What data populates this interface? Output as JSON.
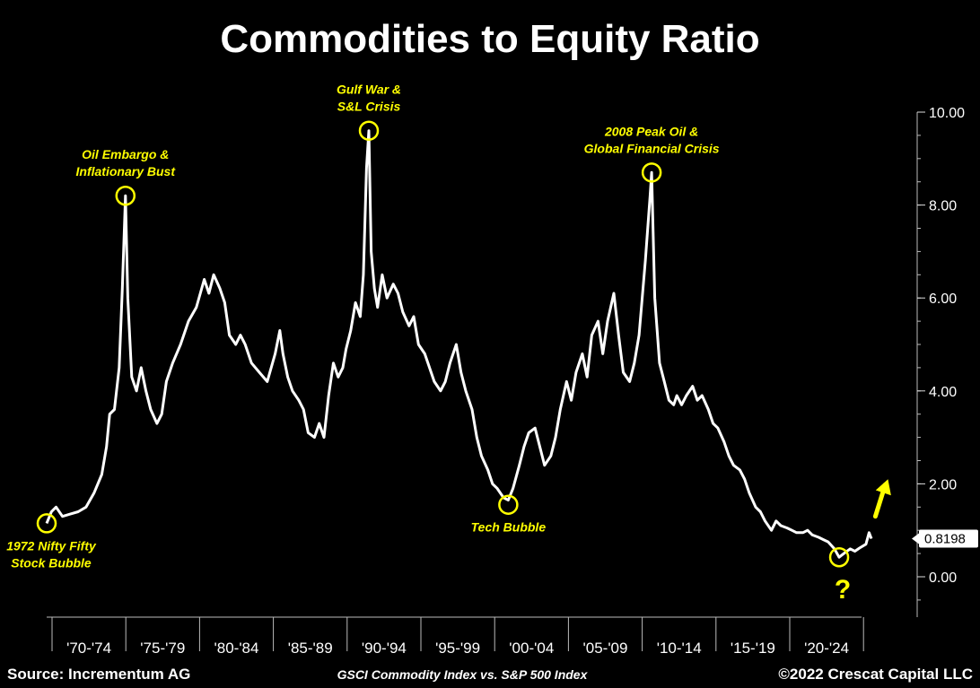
{
  "chart_data": {
    "type": "line",
    "title": "Commodities to Equity Ratio",
    "subtitle": "GSCI Commodity Index vs. S&P 500 Index",
    "xlabel": "",
    "ylabel": "",
    "xlim": [
      1970,
      2024
    ],
    "ylim": [
      -1,
      10.5
    ],
    "y_ticks": [
      0,
      2,
      4,
      6,
      8,
      10
    ],
    "y_tick_labels": [
      "0.00",
      "2.00",
      "4.00",
      "6.00",
      "8.00",
      "10.00"
    ],
    "x_tick_labels": [
      "'70-'74",
      "'75-'79",
      "'80-'84",
      "'85-'89",
      "'90-'94",
      "'95-'99",
      "'00-'04",
      "'05-'09",
      "'10-'14",
      "'15-'19",
      "'20-'24"
    ],
    "last_value_label": "0.8198",
    "series": [
      {
        "name": "GSCI / S&P 500",
        "points": [
          [
            1970.0,
            1.15
          ],
          [
            1970.3,
            1.4
          ],
          [
            1970.6,
            1.5
          ],
          [
            1971.0,
            1.3
          ],
          [
            1971.5,
            1.35
          ],
          [
            1972.0,
            1.4
          ],
          [
            1972.5,
            1.5
          ],
          [
            1973.0,
            1.8
          ],
          [
            1973.5,
            2.2
          ],
          [
            1973.8,
            2.8
          ],
          [
            1974.0,
            3.5
          ],
          [
            1974.3,
            3.6
          ],
          [
            1974.6,
            4.5
          ],
          [
            1974.8,
            6.2
          ],
          [
            1975.0,
            8.2
          ],
          [
            1975.15,
            6.0
          ],
          [
            1975.4,
            4.3
          ],
          [
            1975.7,
            4.0
          ],
          [
            1976.0,
            4.5
          ],
          [
            1976.3,
            4.0
          ],
          [
            1976.6,
            3.6
          ],
          [
            1977.0,
            3.3
          ],
          [
            1977.3,
            3.5
          ],
          [
            1977.6,
            4.2
          ],
          [
            1978.0,
            4.6
          ],
          [
            1978.5,
            5.0
          ],
          [
            1979.0,
            5.5
          ],
          [
            1979.5,
            5.8
          ],
          [
            1980.0,
            6.4
          ],
          [
            1980.3,
            6.1
          ],
          [
            1980.6,
            6.5
          ],
          [
            1981.0,
            6.2
          ],
          [
            1981.3,
            5.9
          ],
          [
            1981.6,
            5.2
          ],
          [
            1982.0,
            5.0
          ],
          [
            1982.3,
            5.2
          ],
          [
            1982.6,
            5.0
          ],
          [
            1983.0,
            4.6
          ],
          [
            1983.5,
            4.4
          ],
          [
            1984.0,
            4.2
          ],
          [
            1984.5,
            4.8
          ],
          [
            1984.8,
            5.3
          ],
          [
            1985.0,
            4.8
          ],
          [
            1985.3,
            4.3
          ],
          [
            1985.6,
            4.0
          ],
          [
            1986.0,
            3.8
          ],
          [
            1986.3,
            3.6
          ],
          [
            1986.6,
            3.1
          ],
          [
            1987.0,
            3.0
          ],
          [
            1987.3,
            3.3
          ],
          [
            1987.6,
            3.0
          ],
          [
            1987.9,
            3.9
          ],
          [
            1988.2,
            4.6
          ],
          [
            1988.5,
            4.3
          ],
          [
            1988.8,
            4.5
          ],
          [
            1989.0,
            4.9
          ],
          [
            1989.3,
            5.3
          ],
          [
            1989.6,
            5.9
          ],
          [
            1989.9,
            5.6
          ],
          [
            1990.1,
            6.5
          ],
          [
            1990.3,
            8.8
          ],
          [
            1990.45,
            9.6
          ],
          [
            1990.6,
            7.0
          ],
          [
            1990.8,
            6.2
          ],
          [
            1991.0,
            5.8
          ],
          [
            1991.3,
            6.5
          ],
          [
            1991.6,
            6.0
          ],
          [
            1992.0,
            6.3
          ],
          [
            1992.3,
            6.1
          ],
          [
            1992.6,
            5.7
          ],
          [
            1993.0,
            5.4
          ],
          [
            1993.3,
            5.6
          ],
          [
            1993.6,
            5.0
          ],
          [
            1994.0,
            4.8
          ],
          [
            1994.3,
            4.5
          ],
          [
            1994.6,
            4.2
          ],
          [
            1995.0,
            4.0
          ],
          [
            1995.3,
            4.2
          ],
          [
            1995.6,
            4.6
          ],
          [
            1996.0,
            5.0
          ],
          [
            1996.3,
            4.4
          ],
          [
            1996.6,
            4.0
          ],
          [
            1997.0,
            3.6
          ],
          [
            1997.3,
            3.0
          ],
          [
            1997.6,
            2.6
          ],
          [
            1998.0,
            2.3
          ],
          [
            1998.3,
            2.0
          ],
          [
            1998.6,
            1.9
          ],
          [
            1999.0,
            1.7
          ],
          [
            1999.3,
            1.65
          ],
          [
            1999.6,
            1.9
          ],
          [
            2000.0,
            2.4
          ],
          [
            2000.3,
            2.8
          ],
          [
            2000.6,
            3.1
          ],
          [
            2001.0,
            3.2
          ],
          [
            2001.3,
            2.8
          ],
          [
            2001.6,
            2.4
          ],
          [
            2002.0,
            2.6
          ],
          [
            2002.3,
            3.0
          ],
          [
            2002.6,
            3.6
          ],
          [
            2003.0,
            4.2
          ],
          [
            2003.3,
            3.8
          ],
          [
            2003.6,
            4.4
          ],
          [
            2004.0,
            4.8
          ],
          [
            2004.3,
            4.3
          ],
          [
            2004.6,
            5.2
          ],
          [
            2005.0,
            5.5
          ],
          [
            2005.3,
            4.8
          ],
          [
            2005.6,
            5.5
          ],
          [
            2006.0,
            6.1
          ],
          [
            2006.3,
            5.2
          ],
          [
            2006.6,
            4.4
          ],
          [
            2007.0,
            4.2
          ],
          [
            2007.3,
            4.6
          ],
          [
            2007.6,
            5.2
          ],
          [
            2008.0,
            6.8
          ],
          [
            2008.3,
            8.2
          ],
          [
            2008.4,
            8.7
          ],
          [
            2008.6,
            6.0
          ],
          [
            2008.9,
            4.6
          ],
          [
            2009.2,
            4.2
          ],
          [
            2009.5,
            3.8
          ],
          [
            2009.8,
            3.7
          ],
          [
            2010.0,
            3.9
          ],
          [
            2010.3,
            3.7
          ],
          [
            2010.6,
            3.9
          ],
          [
            2011.0,
            4.1
          ],
          [
            2011.3,
            3.8
          ],
          [
            2011.6,
            3.9
          ],
          [
            2012.0,
            3.6
          ],
          [
            2012.3,
            3.3
          ],
          [
            2012.6,
            3.2
          ],
          [
            2013.0,
            2.9
          ],
          [
            2013.3,
            2.6
          ],
          [
            2013.6,
            2.4
          ],
          [
            2014.0,
            2.3
          ],
          [
            2014.3,
            2.1
          ],
          [
            2014.6,
            1.8
          ],
          [
            2015.0,
            1.5
          ],
          [
            2015.3,
            1.4
          ],
          [
            2015.6,
            1.2
          ],
          [
            2016.0,
            1.0
          ],
          [
            2016.3,
            1.2
          ],
          [
            2016.6,
            1.1
          ],
          [
            2017.0,
            1.05
          ],
          [
            2017.3,
            1.0
          ],
          [
            2017.6,
            0.95
          ],
          [
            2018.0,
            0.95
          ],
          [
            2018.3,
            1.0
          ],
          [
            2018.6,
            0.9
          ],
          [
            2019.0,
            0.85
          ],
          [
            2019.3,
            0.8
          ],
          [
            2019.6,
            0.75
          ],
          [
            2020.0,
            0.6
          ],
          [
            2020.3,
            0.42
          ],
          [
            2020.6,
            0.5
          ],
          [
            2021.0,
            0.6
          ],
          [
            2021.3,
            0.55
          ],
          [
            2021.6,
            0.62
          ],
          [
            2022.0,
            0.7
          ],
          [
            2022.2,
            0.95
          ],
          [
            2022.35,
            0.82
          ]
        ]
      }
    ],
    "annotations": [
      {
        "x": 1970.0,
        "y": 1.15,
        "lines": [
          "1972 Nifty Fifty",
          "Stock Bubble"
        ],
        "label_side": "below"
      },
      {
        "x": 1975.0,
        "y": 8.2,
        "lines": [
          "Oil Embargo &",
          "Inflationary Bust"
        ],
        "label_side": "above"
      },
      {
        "x": 1990.45,
        "y": 9.6,
        "lines": [
          "Gulf War &",
          "S&L Crisis"
        ],
        "label_side": "above"
      },
      {
        "x": 1999.3,
        "y": 1.55,
        "lines": [
          "Tech Bubble"
        ],
        "label_side": "below"
      },
      {
        "x": 2008.4,
        "y": 8.7,
        "lines": [
          "2008 Peak Oil &",
          "Global Financial Crisis"
        ],
        "label_side": "above"
      },
      {
        "x": 2020.3,
        "y": 0.42,
        "lines": [
          "?"
        ],
        "label_side": "below"
      }
    ],
    "arrow": {
      "from": [
        2022.6,
        1.3
      ],
      "to": [
        2023.4,
        2.1
      ],
      "color": "#ffff00"
    },
    "line_color": "#ffffff",
    "annotation_color": "#ffff00"
  },
  "footer": {
    "source": "Source: Incrementum AG",
    "subtitle": "GSCI Commodity Index vs. S&P 500 Index",
    "copyright": "©2022 Crescat Capital LLC"
  }
}
